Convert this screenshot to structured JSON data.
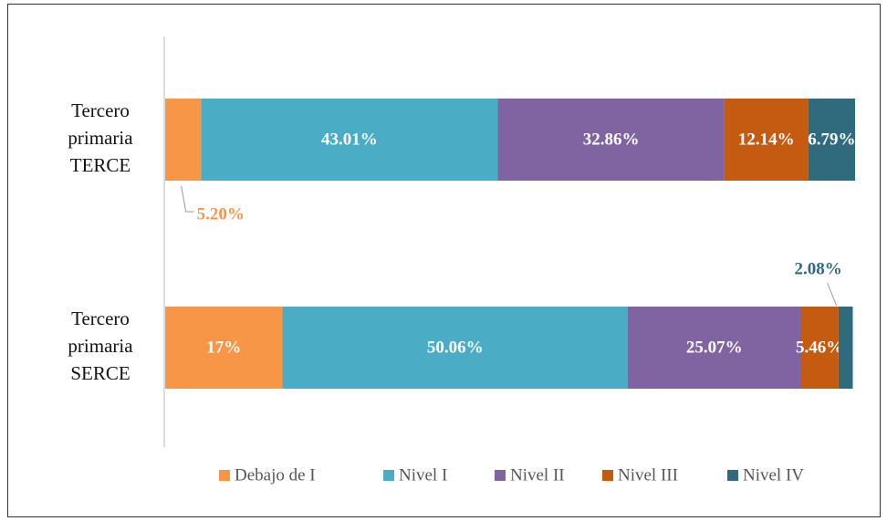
{
  "chart_data": {
    "type": "stacked-bar-horizontal",
    "categories": [
      "Tercero primaria TERCE",
      "Tercero primaria SERCE"
    ],
    "xlim": [
      0,
      100
    ],
    "series": [
      {
        "name": "Debajo de I",
        "color": "#f79646",
        "values": [
          5.2,
          17
        ],
        "value_labels": [
          "5.20%",
          "17%"
        ]
      },
      {
        "name": "Nivel I",
        "color": "#4bacc6",
        "values": [
          43.01,
          50.06
        ],
        "value_labels": [
          "43.01%",
          "50.06%"
        ]
      },
      {
        "name": "Nivel II",
        "color": "#8064a2",
        "values": [
          32.86,
          25.07
        ],
        "value_labels": [
          "32.86%",
          "25.07%"
        ]
      },
      {
        "name": "Nivel III",
        "color": "#c55a11",
        "values": [
          12.14,
          5.46
        ],
        "value_labels": [
          "12.14%",
          "5.46%"
        ]
      },
      {
        "name": "Nivel IV",
        "color": "#2f6b7d",
        "values": [
          6.79,
          2.08
        ],
        "value_labels": [
          "6.79%",
          "2.08%"
        ]
      }
    ],
    "legend": "bottom"
  }
}
